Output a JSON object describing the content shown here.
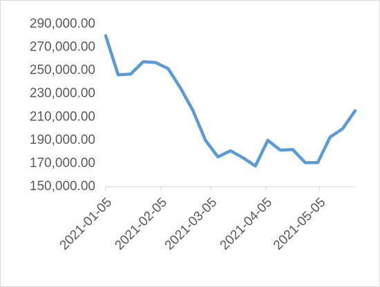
{
  "chart_data": {
    "type": "line",
    "x": [
      "2021-01-05",
      "2021-01-12",
      "2021-01-19",
      "2021-01-26",
      "2021-02-02",
      "2021-02-09",
      "2021-02-16",
      "2021-02-23",
      "2021-03-02",
      "2021-03-09",
      "2021-03-16",
      "2021-03-23",
      "2021-03-30",
      "2021-04-06",
      "2021-04-13",
      "2021-04-20",
      "2021-04-27",
      "2021-05-04",
      "2021-05-11",
      "2021-05-18",
      "2021-05-25"
    ],
    "series": [
      {
        "color": "#5b9bd5",
        "values": [
          280000,
          246400,
          247000,
          257700,
          257000,
          251800,
          235000,
          215500,
          190000,
          175700,
          181000,
          175000,
          167900,
          190000,
          181500,
          182000,
          170800,
          170800,
          192800,
          200000,
          215500
        ]
      }
    ],
    "xlim": [
      "2021-01-05",
      "2021-05-25"
    ],
    "xticks": [
      "2021-01-05",
      "2021-02-05",
      "2021-03-05",
      "2021-04-05",
      "2021-05-05"
    ],
    "ylim": [
      150000,
      290000
    ],
    "yticks": [
      {
        "value": 150000,
        "label": "150,000.00"
      },
      {
        "value": 170000,
        "label": "170,000.00"
      },
      {
        "value": 190000,
        "label": "190,000.00"
      },
      {
        "value": 210000,
        "label": "210,000.00"
      },
      {
        "value": 230000,
        "label": "230,000.00"
      },
      {
        "value": 250000,
        "label": "250,000.00"
      },
      {
        "value": 270000,
        "label": "270,000.00"
      },
      {
        "value": 290000,
        "label": "290,000.00"
      }
    ],
    "grid": false
  }
}
